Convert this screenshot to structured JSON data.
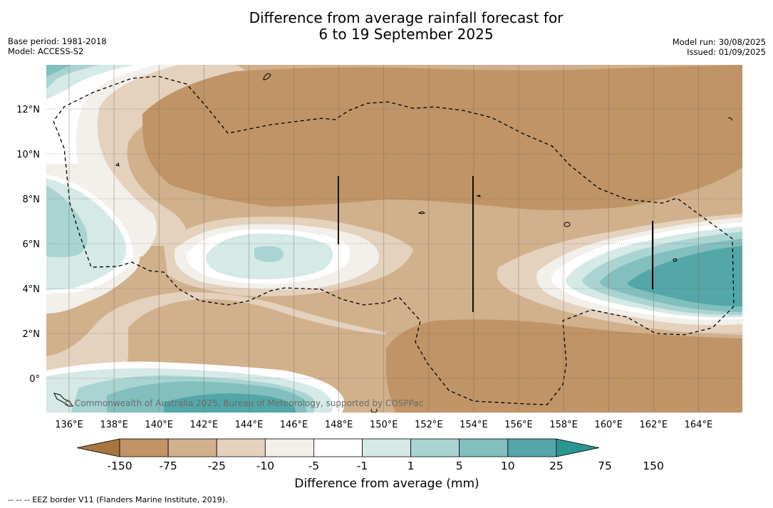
{
  "title_line1": "Difference from average rainfall forecast for",
  "title_line2": "6 to 19 September 2025",
  "base_period": "Base period: 1981-2018",
  "model": "Model: ACCESS-S2",
  "model_run": "Model run: 30/08/2025",
  "issued": "Issued: 01/09/2025",
  "copyright": "© Commonwealth of Australia 2025, Bureau of Meteorology, supported by COSPPac",
  "map": {
    "lon_labels": [
      "136°E",
      "138°E",
      "140°E",
      "142°E",
      "144°E",
      "146°E",
      "148°E",
      "150°E",
      "152°E",
      "154°E",
      "156°E",
      "158°E",
      "160°E",
      "162°E",
      "164°E"
    ],
    "lat_labels": [
      "12°N",
      "10°N",
      "8°N",
      "6°N",
      "4°N",
      "2°N",
      "0°"
    ]
  },
  "legend": {
    "title": "Difference from average (mm)",
    "labels": [
      "-150",
      "-75",
      "-25",
      "-10",
      "-5",
      "-1",
      "1",
      "5",
      "10",
      "25",
      "75",
      "150"
    ],
    "colors": [
      "#a8743f",
      "#c09467",
      "#d1b08c",
      "#e4d1be",
      "#f3efea",
      "#ffffff",
      "#d5e9e7",
      "#a9d4d2",
      "#82bfbe",
      "#53a7a8",
      "#2b9591"
    ]
  },
  "footnote": "--  --  -- EEZ border V11 (Flanders Marine Institute, 2019)."
}
